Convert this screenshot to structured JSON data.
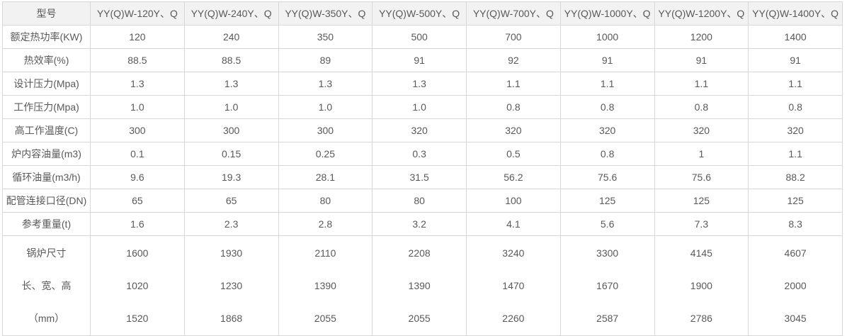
{
  "colors": {
    "header_bg": "#f2f2f2",
    "body_bg": "#ffffff",
    "border": "#d8d8d8",
    "text": "#595959"
  },
  "chart_data": {
    "type": "table",
    "title": "",
    "columns": [
      "型号",
      "YY(Q)W-120Y、Q",
      "YY(Q)W-240Y、Q",
      "YY(Q)W-350Y、Q",
      "YY(Q)W-500Y、Q",
      "YY(Q)W-700Y、Q",
      "YY(Q)W-1000Y、Q",
      "YY(Q)W-1200Y、Q",
      "YY(Q)W-1400Y、Q"
    ],
    "rows": [
      [
        "额定热功率(KW)",
        "120",
        "240",
        "350",
        "500",
        "700",
        "1000",
        "1200",
        "1400"
      ],
      [
        "热效率(%)",
        "88.5",
        "88.5",
        "89",
        "91",
        "92",
        "91",
        "91",
        "91"
      ],
      [
        "设计压力(Mpa)",
        "1.3",
        "1.3",
        "1.3",
        "1.3",
        "1.1",
        "1.1",
        "1.1",
        "1.1"
      ],
      [
        "工作压力(Mpa)",
        "1.0",
        "1.0",
        "1.0",
        "1.0",
        "0.8",
        "0.8",
        "0.8",
        "0.8"
      ],
      [
        "高工作温度(C)",
        "300",
        "300",
        "300",
        "320",
        "320",
        "320",
        "320",
        "320"
      ],
      [
        "炉内容油量(m3)",
        "0.1",
        "0.15",
        "0.25",
        "0.3",
        "0.5",
        "0.8",
        "1",
        "1.1"
      ],
      [
        "循环油量(m3/h)",
        "9.6",
        "19.3",
        "28.1",
        "31.5",
        "56.2",
        "75.6",
        "75.6",
        "88.2"
      ],
      [
        "配管连接口径(DN)",
        "65",
        "65",
        "80",
        "80",
        "100",
        "125",
        "125",
        "125"
      ],
      [
        "参考重量(t)",
        "1.6",
        "2.3",
        "2.8",
        "3.2",
        "4.1",
        "5.6",
        "7.3",
        "8.3"
      ]
    ],
    "merged_row": {
      "label_lines": [
        "锅炉尺寸",
        "长、宽、高",
        "（mm）"
      ],
      "values_per_column": [
        [
          "1600",
          "1020",
          "1520"
        ],
        [
          "1930",
          "1230",
          "1868"
        ],
        [
          "2110",
          "1390",
          "2055"
        ],
        [
          "2208",
          "1390",
          "2055"
        ],
        [
          "3240",
          "1470",
          "2260"
        ],
        [
          "3300",
          "1670",
          "2587"
        ],
        [
          "4145",
          "1900",
          "2786"
        ],
        [
          "4607",
          "2000",
          "3045"
        ]
      ]
    },
    "layout": {
      "grid": true,
      "header_row_shaded": true,
      "first_column_is_row_labels": true
    }
  }
}
